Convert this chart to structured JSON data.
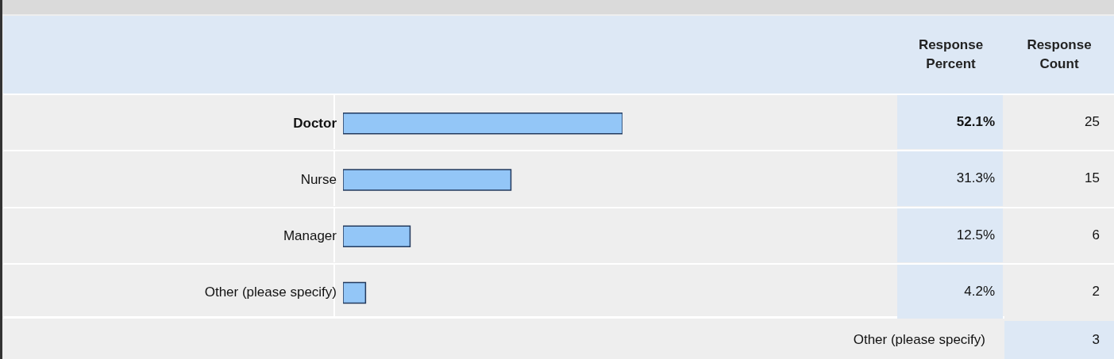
{
  "chart_data": {
    "type": "bar",
    "orientation": "horizontal",
    "categories": [
      "Doctor",
      "Nurse",
      "Manager",
      "Other (please specify)"
    ],
    "values": [
      52.1,
      31.3,
      12.5,
      4.2
    ],
    "value_labels": [
      "52.1%",
      "31.3%",
      "12.5%",
      "4.2%"
    ],
    "color": "#93c6f7",
    "tick_labels": "y",
    "annotations": [
      "Response Percent",
      "Response Count",
      "25",
      "15",
      "6",
      "2",
      "Other (please specify)",
      "3"
    ]
  }
}
